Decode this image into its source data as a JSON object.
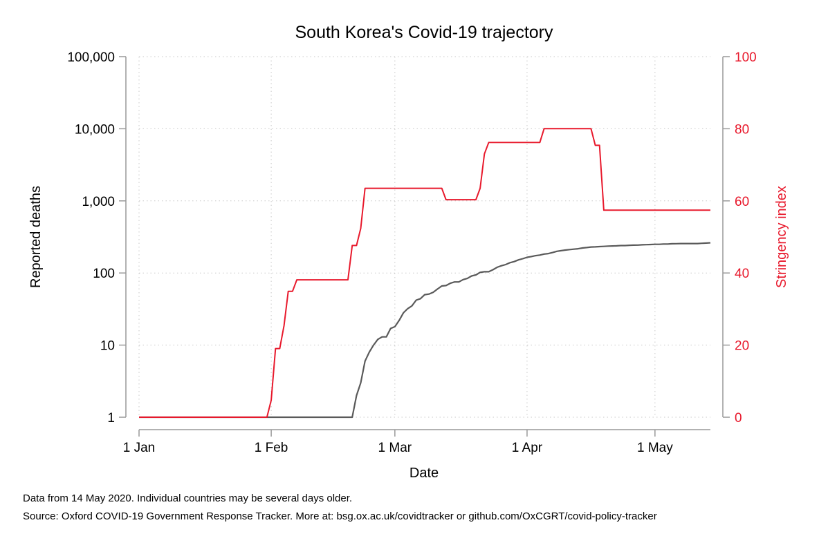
{
  "chart_data": {
    "type": "line",
    "title": "South Korea's Covid-19 trajectory",
    "xlabel": "Date",
    "ylabel_left": "Reported deaths",
    "ylabel_right": "Stringency index",
    "x_ticks": [
      "1 Jan",
      "1 Feb",
      "1 Mar",
      "1 Apr",
      "1 May"
    ],
    "x_tick_days": [
      0,
      31,
      60,
      91,
      121
    ],
    "y_left_scale": "log",
    "y_left_ticks": [
      1,
      10,
      100,
      1000,
      10000,
      100000
    ],
    "y_left_tick_labels": [
      "1",
      "10",
      "100",
      "1,000",
      "10,000",
      "100,000"
    ],
    "ylim_left": [
      1,
      100000
    ],
    "y_right_ticks": [
      0,
      20,
      40,
      60,
      80,
      100
    ],
    "y_right_tick_labels": [
      "0",
      "20",
      "40",
      "60",
      "80",
      "100"
    ],
    "ylim_right": [
      0,
      100
    ],
    "grid": true,
    "colors": {
      "deaths": "#5a5a5a",
      "stringency": "#e8192c",
      "axis": "#999999",
      "grid": "#c8c8c8"
    },
    "series": [
      {
        "axis": "left",
        "x": [
          "2020-01-01",
          "2020-02-20",
          "2020-02-21",
          "2020-02-22",
          "2020-02-23",
          "2020-02-24",
          "2020-02-25",
          "2020-02-26",
          "2020-02-27",
          "2020-02-28",
          "2020-02-29",
          "2020-03-01",
          "2020-03-02",
          "2020-03-03",
          "2020-03-04",
          "2020-03-05",
          "2020-03-06",
          "2020-03-07",
          "2020-03-08",
          "2020-03-09",
          "2020-03-10",
          "2020-03-11",
          "2020-03-12",
          "2020-03-13",
          "2020-03-14",
          "2020-03-15",
          "2020-03-16",
          "2020-03-17",
          "2020-03-18",
          "2020-03-19",
          "2020-03-20",
          "2020-03-21",
          "2020-03-22",
          "2020-03-23",
          "2020-03-24",
          "2020-03-25",
          "2020-03-26",
          "2020-03-27",
          "2020-03-28",
          "2020-03-29",
          "2020-03-30",
          "2020-03-31",
          "2020-04-01",
          "2020-04-02",
          "2020-04-03",
          "2020-04-04",
          "2020-04-05",
          "2020-04-06",
          "2020-04-07",
          "2020-04-08",
          "2020-04-09",
          "2020-04-10",
          "2020-04-11",
          "2020-04-12",
          "2020-04-13",
          "2020-04-14",
          "2020-04-15",
          "2020-04-16",
          "2020-04-17",
          "2020-04-18",
          "2020-04-19",
          "2020-04-20",
          "2020-04-21",
          "2020-04-22",
          "2020-04-23",
          "2020-04-24",
          "2020-04-25",
          "2020-04-26",
          "2020-04-27",
          "2020-04-28",
          "2020-04-29",
          "2020-04-30",
          "2020-05-01",
          "2020-05-02",
          "2020-05-03",
          "2020-05-04",
          "2020-05-05",
          "2020-05-06",
          "2020-05-07",
          "2020-05-08",
          "2020-05-09",
          "2020-05-10",
          "2020-05-11",
          "2020-05-12",
          "2020-05-13",
          "2020-05-14"
        ],
        "values": [
          1,
          1,
          2,
          3,
          6,
          8,
          10,
          12,
          13,
          13,
          17,
          18,
          22,
          28,
          32,
          35,
          42,
          44,
          50,
          51,
          54,
          60,
          66,
          67,
          72,
          75,
          75,
          81,
          84,
          91,
          94,
          102,
          104,
          104,
          111,
          120,
          126,
          131,
          139,
          144,
          152,
          158,
          165,
          169,
          174,
          177,
          183,
          186,
          192,
          200,
          204,
          208,
          211,
          214,
          217,
          222,
          225,
          229,
          230,
          232,
          234,
          236,
          237,
          238,
          240,
          240,
          242,
          243,
          244,
          246,
          247,
          248,
          250,
          250,
          252,
          252,
          254,
          255,
          256,
          256,
          256,
          256,
          256,
          258,
          260,
          262
        ]
      },
      {
        "axis": "right",
        "x": [
          "2020-01-01",
          "2020-01-31",
          "2020-02-01",
          "2020-02-02",
          "2020-02-03",
          "2020-02-04",
          "2020-02-05",
          "2020-02-06",
          "2020-02-07",
          "2020-02-08",
          "2020-02-19",
          "2020-02-20",
          "2020-02-21",
          "2020-02-22",
          "2020-02-23",
          "2020-02-24",
          "2020-03-12",
          "2020-03-13",
          "2020-03-20",
          "2020-03-21",
          "2020-03-22",
          "2020-03-23",
          "2020-04-04",
          "2020-04-05",
          "2020-04-16",
          "2020-04-17",
          "2020-04-18",
          "2020-04-19",
          "2020-05-14"
        ],
        "values": [
          0,
          0,
          4.76,
          19.05,
          19.05,
          25.4,
          34.92,
          34.92,
          38.1,
          38.1,
          38.1,
          47.62,
          47.62,
          52.38,
          63.49,
          63.49,
          63.49,
          60.32,
          60.32,
          63.49,
          73.02,
          76.19,
          76.19,
          80.03,
          80.03,
          75.4,
          75.4,
          57.41,
          57.41
        ]
      }
    ]
  },
  "notes": {
    "line1": "Data from 14 May 2020. Individual countries may be several days older.",
    "line2": "Source: Oxford COVID-19 Government Response Tracker. More at: bsg.ox.ac.uk/covidtracker or github.com/OxCGRT/covid-policy-tracker"
  }
}
